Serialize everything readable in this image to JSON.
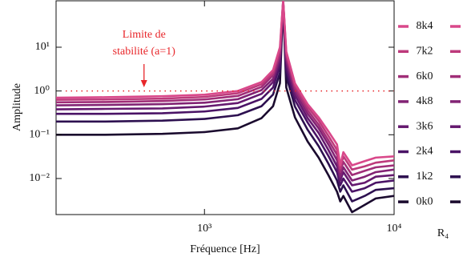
{
  "chart_data": {
    "type": "line",
    "x_label": "Fréquence [Hz]",
    "y_label": "Amplitude",
    "log_x": true,
    "log_y": true,
    "xlim": [
      165,
      10000
    ],
    "ylim": [
      0.0015,
      115
    ],
    "xticks": [
      {
        "value": 1000,
        "label": "10³"
      },
      {
        "value": 10000,
        "label": "10⁴"
      }
    ],
    "yticks": [
      {
        "value": 0.01,
        "label": "10⁻²"
      },
      {
        "value": 0.1,
        "label": "10⁻¹"
      },
      {
        "value": 1,
        "label": "10⁰"
      },
      {
        "value": 10,
        "label": "10¹"
      }
    ],
    "annotation": {
      "lines": [
        "Limite de",
        "stabilité (a=1)"
      ],
      "color": "#e8262a",
      "x": 480
    },
    "stability_limit": 1,
    "legend_title": "R₄",
    "legend_position": "right",
    "x": [
      165,
      300,
      600,
      1000,
      1500,
      2000,
      2300,
      2500,
      2600,
      2700,
      3000,
      3500,
      4000,
      4500,
      5000,
      5200,
      5400,
      6000,
      7000,
      8000,
      10000
    ],
    "series": [
      {
        "name": "0k0",
        "color": "#1a0a2e",
        "values": [
          0.1,
          0.1,
          0.105,
          0.115,
          0.14,
          0.24,
          0.45,
          1.5,
          100,
          1.2,
          0.25,
          0.07,
          0.03,
          0.012,
          0.005,
          0.003,
          0.004,
          0.0017,
          0.0025,
          0.0035,
          0.004
        ]
      },
      {
        "name": "1k2",
        "color": "#2d1050",
        "values": [
          0.2,
          0.2,
          0.21,
          0.23,
          0.28,
          0.45,
          0.83,
          2.6,
          102,
          2.2,
          0.44,
          0.13,
          0.055,
          0.022,
          0.009,
          0.005,
          0.007,
          0.003,
          0.004,
          0.0055,
          0.006
        ]
      },
      {
        "name": "2k4",
        "color": "#4a1366",
        "values": [
          0.3,
          0.3,
          0.31,
          0.34,
          0.41,
          0.66,
          1.2,
          3.8,
          105,
          3.1,
          0.62,
          0.19,
          0.08,
          0.033,
          0.014,
          0.007,
          0.01,
          0.005,
          0.006,
          0.008,
          0.009
        ]
      },
      {
        "name": "3k6",
        "color": "#65196f",
        "values": [
          0.38,
          0.39,
          0.4,
          0.44,
          0.53,
          0.86,
          1.6,
          4.9,
          108,
          4,
          0.8,
          0.24,
          0.11,
          0.045,
          0.019,
          0.009,
          0.014,
          0.007,
          0.008,
          0.011,
          0.012
        ]
      },
      {
        "name": "4k8",
        "color": "#822374",
        "values": [
          0.47,
          0.48,
          0.5,
          0.54,
          0.65,
          1.05,
          1.9,
          6,
          110,
          5,
          0.98,
          0.3,
          0.14,
          0.06,
          0.026,
          0.011,
          0.018,
          0.009,
          0.011,
          0.014,
          0.016
        ]
      },
      {
        "name": "6k0",
        "color": "#a02e78",
        "values": [
          0.55,
          0.56,
          0.59,
          0.64,
          0.77,
          1.24,
          2.3,
          7.1,
          113,
          6,
          1.15,
          0.36,
          0.17,
          0.075,
          0.035,
          0.014,
          0.024,
          0.012,
          0.015,
          0.018,
          0.02
        ]
      },
      {
        "name": "7k2",
        "color": "#bd3a7b",
        "values": [
          0.63,
          0.64,
          0.67,
          0.73,
          0.89,
          1.42,
          2.6,
          8.6,
          116,
          7,
          1.33,
          0.43,
          0.21,
          0.095,
          0.045,
          0.017,
          0.032,
          0.016,
          0.019,
          0.023,
          0.026
        ]
      },
      {
        "name": "8k4",
        "color": "#d9488a",
        "values": [
          0.7,
          0.72,
          0.76,
          0.82,
          1.0,
          1.6,
          3,
          10,
          120,
          8,
          1.5,
          0.5,
          0.25,
          0.12,
          0.06,
          0.02,
          0.04,
          0.02,
          0.025,
          0.03,
          0.032
        ]
      }
    ]
  }
}
